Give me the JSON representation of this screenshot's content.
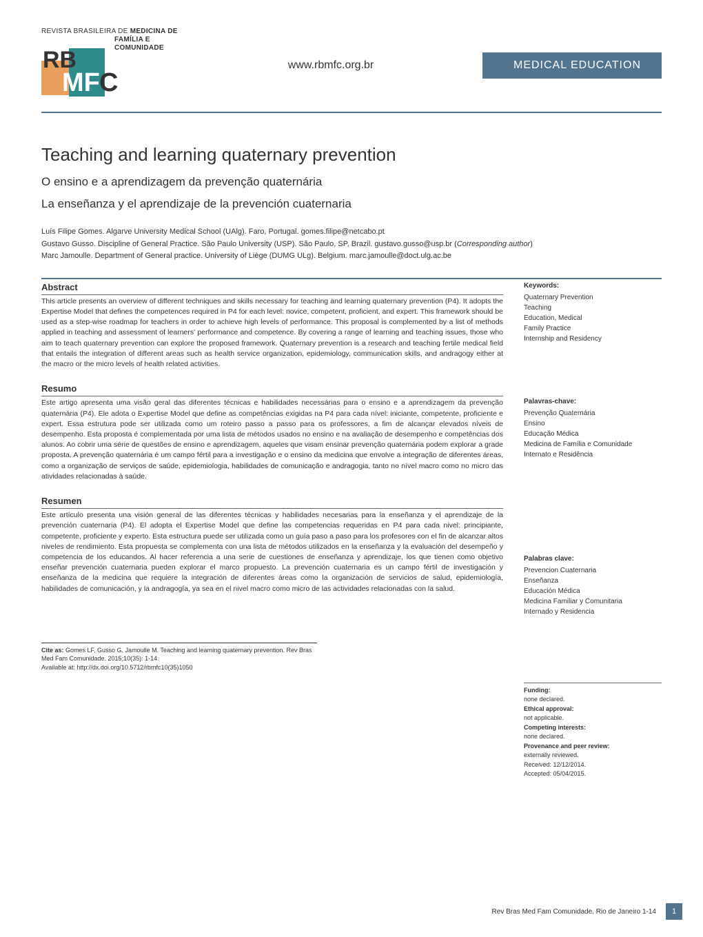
{
  "header": {
    "journal_line1": "REVISTA BRASILEIRA DE",
    "journal_line2": "MEDICINA DE",
    "journal_line3": "FAMÍLIA E",
    "journal_line4": "COMUNIDADE",
    "url": "www.rbmfc.org.br",
    "banner": "MEDICAL EDUCATION",
    "banner_bg": "#53748f"
  },
  "titles": {
    "en": "Teaching and learning quaternary prevention",
    "pt": "O ensino e a aprendizagem da prevenção quaternária",
    "es": "La enseñanza y el aprendizaje de la prevención cuaternaria"
  },
  "authors": [
    "Luís Filipe Gomes. Algarve University Medical School (UAlg). Faro, Portugal. gomes.filipe@netcabo.pt",
    "Gustavo Gusso. Discipline of General Practice. São Paulo University (USP). São Paulo, SP, Brazil. gustavo.gusso@usp.br (Corresponding author)",
    "Marc Jamoulle. Department of General practice. University of Liège (DUMG ULg). Belgium. marc.jamoulle@doct.ulg.ac.be"
  ],
  "abstract": {
    "heading": "Abstract",
    "body": "This article presents an overview of different techniques and skills necessary for teaching and learning quaternary prevention (P4). It adopts the Expertise Model that defines the competences required in P4 for each level: novice, competent, proficient, and expert. This framework should be used as a step-wise roadmap for teachers in order to achieve high levels of performance. This proposal is complemented by a list of methods applied in teaching and assessment of learners' performance and competence. By covering a range of learning and teaching issues, those who aim to teach quaternary prevention can explore the proposed framework. Quaternary prevention is a research and teaching fertile medical field that entails the integration of different areas such as health service organization, epidemiology, communication skills, and andragogy either at the macro or the micro levels of health related activities."
  },
  "resumo": {
    "heading": "Resumo",
    "body": "Este artigo apresenta uma visão geral das diferentes técnicas e habilidades necessárias para o ensino e a aprendizagem da prevenção quaternária (P4). Ele adota o Expertise Model que define as competências exigidas na P4 para cada nível: iniciante, competente, proficiente e expert. Essa estrutura pode ser utilizada como um roteiro passo a passo para os professores, a fim de alcançar elevados níveis de desempenho. Esta proposta é complementada por uma lista de métodos usados no ensino e na avaliação de desempenho e competências dos alunos. Ao cobrir uma série de questões de ensino e aprendizagem, aqueles que visam ensinar prevenção quaternária podem explorar a grade proposta. A prevenção quaternária é um campo fértil para a investigação e o ensino da medicina que envolve a integração de diferentes áreas, como a organização de serviços de saúde, epidemiologia, habilidades de comunicação e andragogia, tanto no nível macro como no micro das atividades relacionadas à saúde."
  },
  "resumen": {
    "heading": "Resumen",
    "body": "Este artículo presenta una visión general de las diferentes técnicas y habilidades necesarias para la enseñanza y el aprendizaje de la prevención cuaternaria (P4). El adopta el Expertise Model que define las competencias requeridas en P4 para cada nivel: principiante, competente, proficiente y experto. Esta estructura puede ser utilizada como un guía paso a paso para los profesores con el fin de alcanzar altos niveles de rendimiento. Esta propuesta se complementa con una lista de métodos utilizados en la enseñanza y la evaluación del desempeño y competencia de los educandos. Al hacer referencia a una serie de cuestiones de enseñanza y aprendizaje, los que tienen como objetivo enseñar prevención cuaternaria pueden explorar el marco propuesto. La prevención cuaternaria es un campo fértil de investigación y enseñanza de la medicina que requiere la integración de diferentes áreas como la organización de servicios de salud, epidemiología, habilidades de comunicación, y la andragogía, ya sea en el nivel macro como micro de las actividades relacionadas con la salud."
  },
  "keywords_en": {
    "heading": "Keywords:",
    "items": [
      "Quaternary Prevention",
      "Teaching",
      "Education, Medical",
      "Family Practice",
      "Internship and Residency"
    ]
  },
  "keywords_pt": {
    "heading": "Palavras-chave:",
    "items": [
      "Prevenção Quaternária",
      "Ensino",
      "Educação Médica",
      "Medicina de Família e Comunidade",
      "Internato e Residência"
    ]
  },
  "keywords_es": {
    "heading": "Palabras clave:",
    "items": [
      "Prevencion Cuaternaria",
      "Enseñanza",
      "Educación Médica",
      "Medicina Familiar y Comunitaria",
      "Internado y Residencia"
    ]
  },
  "meta": {
    "funding_label": "Funding:",
    "funding_value": "none declared.",
    "ethical_label": "Ethical approval:",
    "ethical_value": "not applicable.",
    "competing_label": "Competing interests:",
    "competing_value": "none declared.",
    "provenance_label": "Provenance and peer review:",
    "provenance_value": "externally reviewed.",
    "received": "Received: 12/12/2014.",
    "accepted": "Accepted: 05/04/2015."
  },
  "cite": {
    "label": "Cite as:",
    "text": "Gomes LF, Gusso G, Jamoulle M. Teaching and learning quaternary prevention. Rev Bras Med Fam Comunidade.  2015;10(35): 1-14.",
    "avail": "Available at: http://dx.doi.org/10.5712/rbmfc10(35)1050"
  },
  "footer": {
    "text": "Rev Bras Med Fam Comunidade. Rio de Janeiro 1-14",
    "page": "1"
  },
  "colors": {
    "accent": "#53748f",
    "logo_orange": "#e8a05c",
    "logo_teal": "#2e8b8b",
    "text": "#333333"
  }
}
